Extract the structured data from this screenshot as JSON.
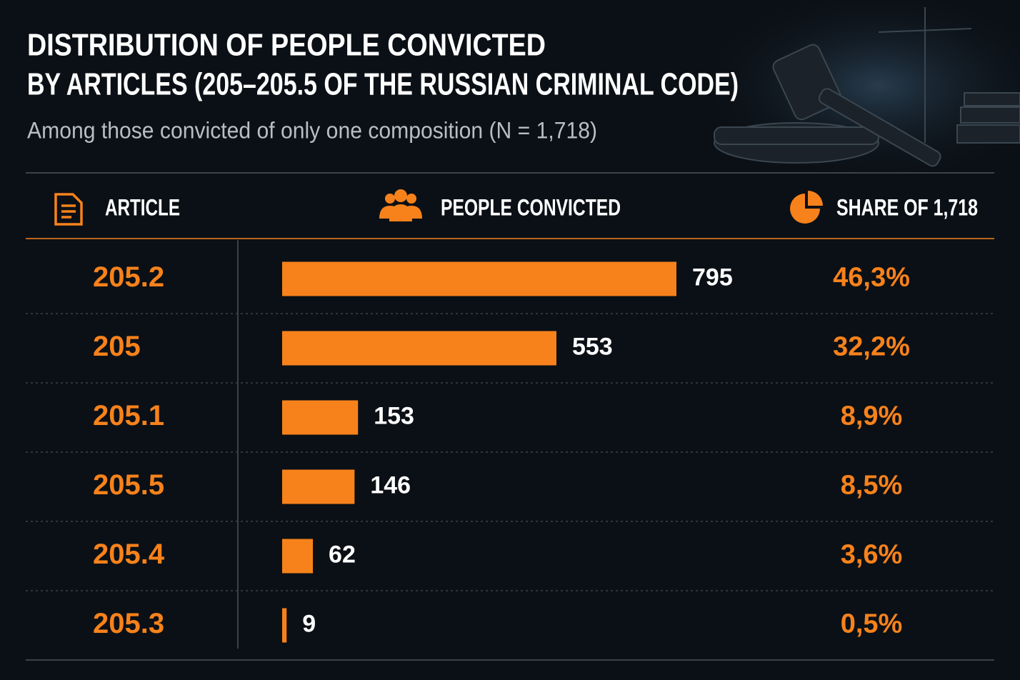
{
  "chart_data": {
    "type": "bar",
    "title": [
      "DISTRIBUTION OF PEOPLE CONVICTED",
      "BY ARTICLES (205–205.5 OF THE RUSSIAN CRIMINAL CODE)"
    ],
    "subtitle": "Among those convicted of only one composition (N = 1,718)",
    "columns": [
      "ARTICLE",
      "PEOPLE CONVICTED",
      "SHARE OF 1,718"
    ],
    "categories": [
      "205.2",
      "205",
      "205.1",
      "205.5",
      "205.4",
      "205.3"
    ],
    "values": [
      795,
      553,
      153,
      146,
      62,
      9
    ],
    "shares": [
      "46,3%",
      "32,2%",
      "8,9%",
      "8,5%",
      "3,6%",
      "0,5%"
    ],
    "color": "#f7821b"
  }
}
